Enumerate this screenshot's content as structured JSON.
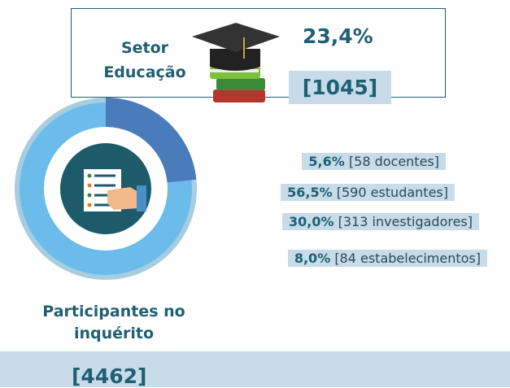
{
  "education": {
    "label_lines": [
      "Setor",
      "Educação"
    ],
    "share": {
      "value": 23.4,
      "label": "23,4%"
    },
    "count": "[1045]"
  },
  "breakdown": [
    {
      "percent": "5,6%",
      "detail": "[58 docentes]"
    },
    {
      "percent": "56,5%",
      "detail": "[590 estudantes]"
    },
    {
      "percent": "30,0%",
      "detail": "[313 investigadores]"
    },
    {
      "percent": "8,0%",
      "detail": "[84 estabelecimentos]"
    }
  ],
  "participants": {
    "label_lines": [
      "Participantes no",
      "inquérito"
    ],
    "count": "[4462]"
  }
}
